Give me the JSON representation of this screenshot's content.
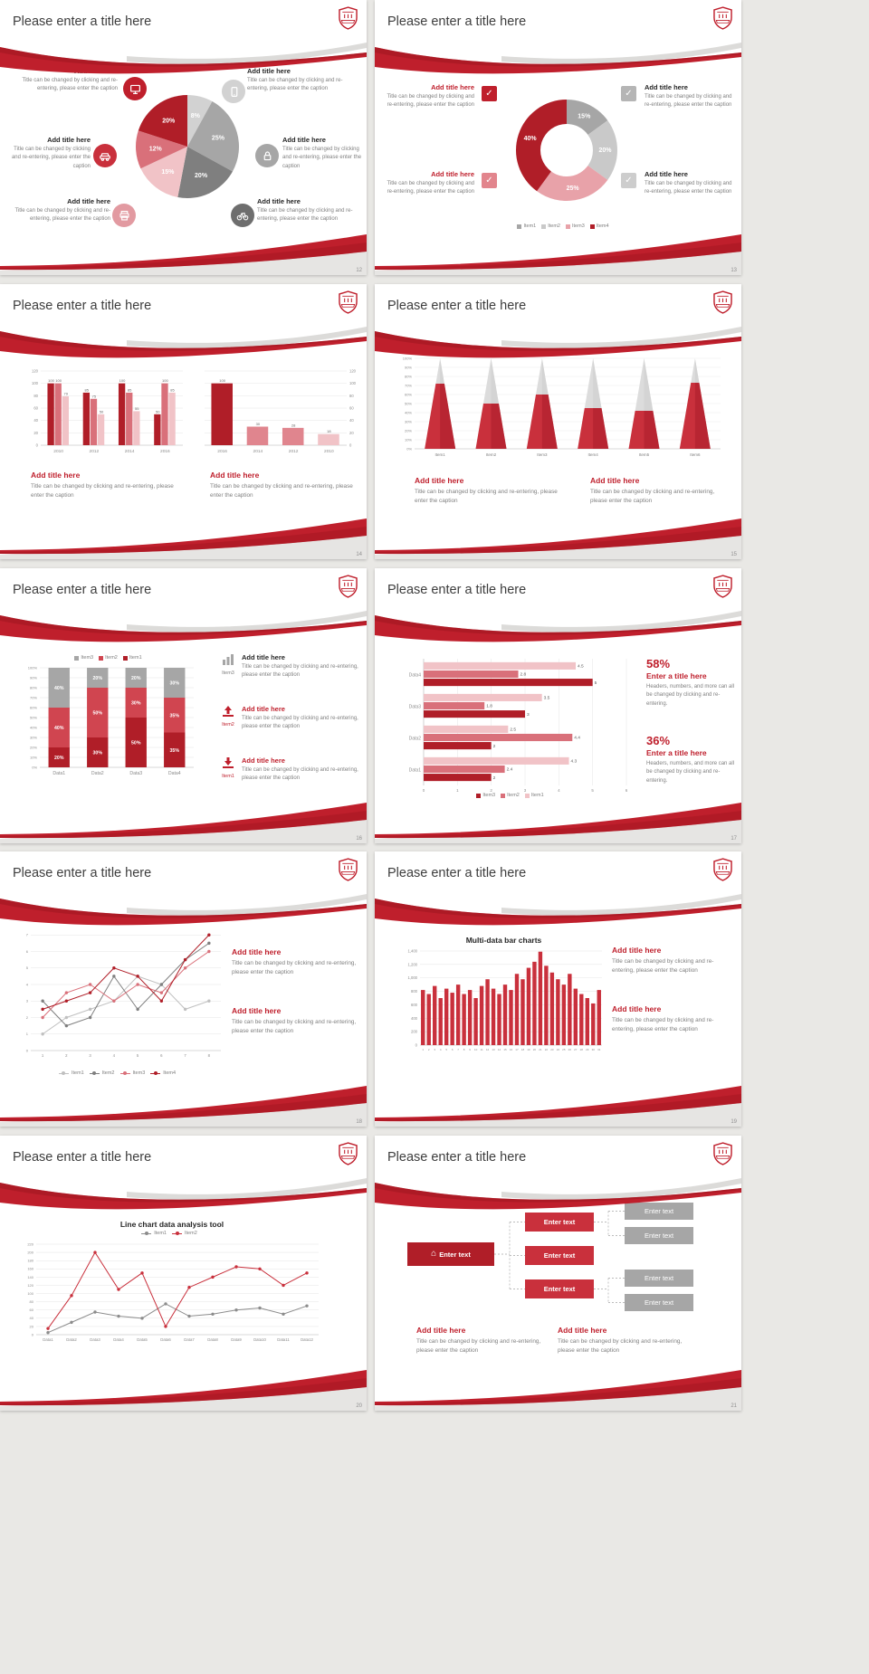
{
  "background": "#e9e8e5",
  "accent": "#bf1f2c",
  "shared": {
    "slide_title": "Please enter a title here",
    "add_title": "Add title here",
    "caption": "Title can be changed by clicking and re-entering, please enter the caption",
    "stats_caption": "Headers, numbers, and more can all be changed by clicking and re-entering.",
    "enter_title": "Enter a title here"
  },
  "icons": {
    "check": "✓",
    "home": "⌂"
  },
  "pages": [
    "12",
    "13",
    "14",
    "15",
    "16",
    "17",
    "18",
    "19",
    "20",
    "21"
  ],
  "chart_data": [
    {
      "slide": "12",
      "type": "pie",
      "slices": [
        {
          "label": "8%",
          "value": 8,
          "color": "#d2d2d2"
        },
        {
          "label": "25%",
          "value": 25,
          "color": "#a6a6a6"
        },
        {
          "label": "20%",
          "value": 20,
          "color": "#7f7f7f"
        },
        {
          "label": "15%",
          "value": 15,
          "color": "#f1c3c7"
        },
        {
          "label": "12%",
          "value": 12,
          "color": "#d9707a"
        },
        {
          "label": "20%",
          "value": 20,
          "color": "#b01e28"
        }
      ]
    },
    {
      "slide": "13",
      "type": "donut",
      "slices": [
        {
          "label": "15%",
          "value": 15,
          "color": "#a6a6a6"
        },
        {
          "label": "20%",
          "value": 20,
          "color": "#c9c9c9"
        },
        {
          "label": "25%",
          "value": 25,
          "color": "#e8a2a9"
        },
        {
          "label": "40%",
          "value": 40,
          "color": "#b01e28"
        }
      ],
      "legend": [
        {
          "label": "Item1",
          "color": "#a6a6a6"
        },
        {
          "label": "Item2",
          "color": "#c9c9c9"
        },
        {
          "label": "Item3",
          "color": "#e8a2a9"
        },
        {
          "label": "Item4",
          "color": "#b01e28"
        }
      ]
    },
    {
      "slide": "14",
      "type": "bar",
      "categories": [
        "2010",
        "2012",
        "2014",
        "2016"
      ],
      "series": [
        {
          "name": "Series1",
          "color": "#b01e28",
          "values": [
            100,
            85,
            100,
            50
          ]
        },
        {
          "name": "Series2",
          "color": "#d9707a",
          "values": [
            100,
            75,
            85,
            100
          ]
        },
        {
          "name": "Series3",
          "color": "#f1c3c7",
          "values": [
            79,
            50,
            55,
            85
          ]
        }
      ],
      "ylim": [
        0,
        120
      ],
      "ystep": 20
    },
    {
      "slide": "14",
      "type": "bar",
      "categories": [
        "2016",
        "2014",
        "2012",
        "2010"
      ],
      "series": [
        {
          "name": "Series1",
          "colors": [
            "#b01e28",
            "#e0858e",
            "#e0858e",
            "#f1c3c7"
          ],
          "values": [
            100,
            30,
            28,
            18
          ]
        }
      ],
      "ylim": [
        0,
        120
      ],
      "ystep": 20,
      "axis_side": "right"
    },
    {
      "slide": "15",
      "type": "cone",
      "categories": [
        "Item1",
        "Item2",
        "Item3",
        "Item4",
        "Item5",
        "Item6"
      ],
      "values": [
        72,
        50,
        60,
        45,
        42,
        73
      ],
      "cone_color": "#dcdcdc",
      "fill_color": "#c9303c",
      "ylim": [
        0,
        100
      ],
      "ystep": 10
    },
    {
      "slide": "16",
      "type": "stacked_bar",
      "categories": [
        "Data1",
        "Data2",
        "Data3",
        "Data4"
      ],
      "series": [
        {
          "name": "Item1",
          "color": "#b01e28",
          "values": [
            20,
            30,
            50,
            35
          ]
        },
        {
          "name": "Item2",
          "color": "#d04550",
          "values": [
            40,
            50,
            30,
            35
          ]
        },
        {
          "name": "Item3",
          "color": "#a6a6a6",
          "values": [
            40,
            20,
            20,
            30
          ]
        }
      ],
      "legend": [
        {
          "label": "Item3",
          "color": "#a6a6a6"
        },
        {
          "label": "Item2",
          "color": "#d04550"
        },
        {
          "label": "Item1",
          "color": "#b01e28"
        }
      ],
      "ylim": [
        0,
        100
      ],
      "ystep": 10,
      "icon_items": [
        "Item3",
        "Item2",
        "Item1"
      ]
    },
    {
      "slide": "17",
      "type": "hbar",
      "categories": [
        "Data1",
        "Data2",
        "Data3",
        "Data4"
      ],
      "series": [
        {
          "name": "Item1",
          "color": "#f1c3c7",
          "values": [
            4.3,
            2.5,
            3.5,
            4.5
          ]
        },
        {
          "name": "Item2",
          "color": "#d9707a",
          "values": [
            2.4,
            4.4,
            1.8,
            2.8
          ]
        },
        {
          "name": "Item3",
          "color": "#b01e28",
          "values": [
            2,
            2,
            3,
            5
          ]
        }
      ],
      "legend": [
        {
          "label": "Item3",
          "color": "#b01e28"
        },
        {
          "label": "Item2",
          "color": "#d9707a"
        },
        {
          "label": "Item1",
          "color": "#f1c3c7"
        }
      ],
      "xlim": [
        0,
        6
      ],
      "xstep": 1,
      "stats": [
        {
          "value": "58%"
        },
        {
          "value": "36%"
        }
      ]
    },
    {
      "slide": "18",
      "type": "line",
      "x_labels": [
        "1",
        "2",
        "3",
        "4",
        "5",
        "6",
        "7",
        "8"
      ],
      "series": [
        {
          "name": "Item1",
          "color": "#c0c0c0",
          "values": [
            1,
            2,
            2.5,
            3,
            4.5,
            4,
            2.5,
            3
          ]
        },
        {
          "name": "Item2",
          "color": "#7f7f7f",
          "values": [
            3,
            1.5,
            2,
            4.5,
            2.5,
            4,
            5.5,
            6.5
          ]
        },
        {
          "name": "Item3",
          "color": "#d9707a",
          "values": [
            2,
            3.5,
            4,
            3,
            4,
            3.5,
            5,
            6
          ]
        },
        {
          "name": "Item4",
          "color": "#b01e28",
          "values": [
            2.5,
            3,
            3.5,
            5,
            4.5,
            3,
            5.5,
            7
          ]
        }
      ],
      "ylim": [
        0,
        8
      ],
      "ystep": 1
    },
    {
      "slide": "19",
      "type": "bar_series",
      "title": "Multi-data bar charts",
      "x_labels": [
        "1",
        "2",
        "3",
        "4",
        "5",
        "6",
        "7",
        "8",
        "9",
        "10",
        "11",
        "12",
        "13",
        "14",
        "15",
        "16",
        "17",
        "18",
        "19",
        "20",
        "21",
        "22",
        "23",
        "24",
        "25",
        "26",
        "27",
        "28",
        "29",
        "30",
        "31"
      ],
      "values": [
        820,
        760,
        880,
        700,
        840,
        780,
        900,
        760,
        820,
        700,
        880,
        980,
        840,
        760,
        900,
        820,
        1060,
        980,
        1150,
        1240,
        1390,
        1180,
        1080,
        980,
        900,
        1060,
        840,
        760,
        700,
        620,
        820
      ],
      "color": "#c9303c",
      "ylim": [
        0,
        1400
      ],
      "ystep": 200,
      "ytick_labels": [
        "0",
        "200",
        "400",
        "600",
        "800",
        "1,000",
        "1,200",
        "1,400"
      ]
    },
    {
      "slide": "20",
      "type": "line",
      "title": "Line chart data analysis tool",
      "x_labels": [
        "Data1",
        "Data2",
        "Data3",
        "Data4",
        "Data5",
        "Data6",
        "Data7",
        "Data8",
        "Data9",
        "Data10",
        "Data11",
        "Data12"
      ],
      "series": [
        {
          "name": "Item1",
          "color": "#8c8c8c",
          "values": [
            5,
            30,
            55,
            45,
            40,
            75,
            45,
            50,
            60,
            65,
            50,
            70
          ]
        },
        {
          "name": "Item2",
          "color": "#c9303c",
          "values": [
            15,
            95,
            200,
            110,
            150,
            20,
            115,
            140,
            165,
            160,
            120,
            150
          ]
        }
      ],
      "ylim": [
        0,
        220
      ],
      "ystep": 20
    },
    {
      "slide": "21",
      "type": "diagram",
      "root": {
        "label": "Enter text"
      },
      "branches": [
        "Enter text",
        "Enter text",
        "Enter text"
      ],
      "leaves": [
        "Enter text",
        "Enter text",
        "Enter text",
        "Enter text"
      ]
    }
  ]
}
